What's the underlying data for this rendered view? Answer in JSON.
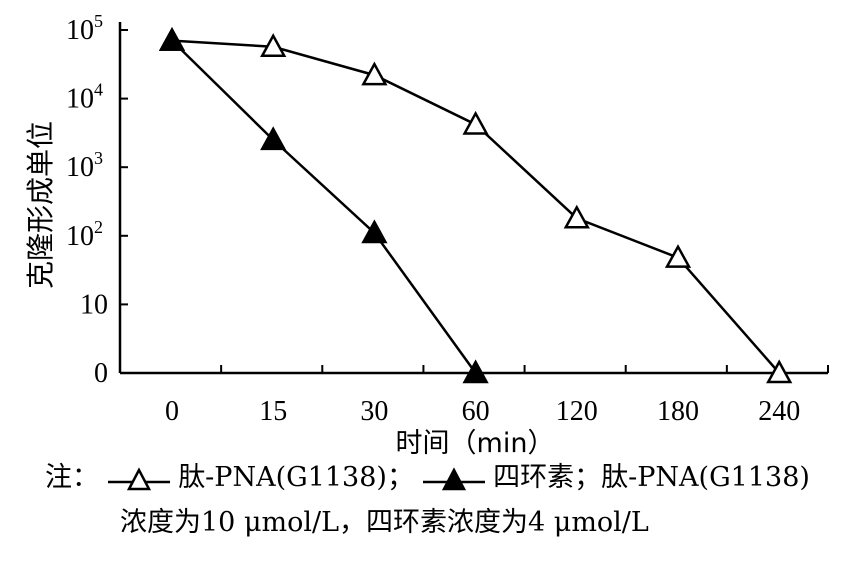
{
  "chart_data": {
    "type": "line",
    "categories": [
      "0",
      "15",
      "30",
      "60",
      "120",
      "180",
      "240"
    ],
    "y_ticks": [
      {
        "base": "0",
        "exp": ""
      },
      {
        "base": "10",
        "exp": ""
      },
      {
        "base": "10",
        "exp": "2"
      },
      {
        "base": "10",
        "exp": "3"
      },
      {
        "base": "10",
        "exp": "4"
      },
      {
        "base": "10",
        "exp": "5"
      }
    ],
    "xlabel": "时间（min）",
    "ylabel": "克隆形成单位",
    "ylim": [
      0,
      100000
    ],
    "y_scale": "log",
    "grid": false,
    "series": [
      {
        "marker": "open-triangle",
        "points": [
          {
            "x": "0",
            "y": 70000
          },
          {
            "x": "15",
            "y": 57000
          },
          {
            "x": "30",
            "y": 22000
          },
          {
            "x": "60",
            "y": 4200
          },
          {
            "x": "120",
            "y": 180
          },
          {
            "x": "180",
            "y": 48
          },
          {
            "x": "240",
            "y": 0
          }
        ]
      },
      {
        "marker": "filled-triangle",
        "points": [
          {
            "x": "0",
            "y": 70000
          },
          {
            "x": "15",
            "y": 2500
          },
          {
            "x": "30",
            "y": 110
          },
          {
            "x": "60",
            "y": 0
          }
        ]
      }
    ]
  },
  "note": {
    "prefix": "注：",
    "series1_label": "肽-PNA(G1138)；",
    "series2_label": "四环素；肽-PNA(G1138)",
    "line2": "浓度为10 μmol/L，四环素浓度为4 μmol/L"
  }
}
